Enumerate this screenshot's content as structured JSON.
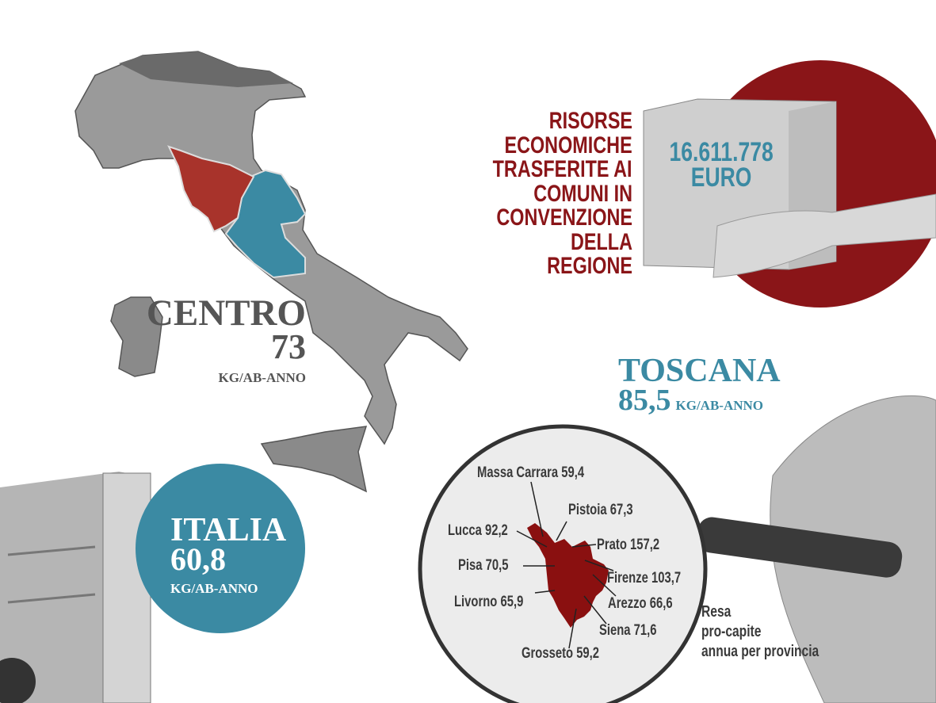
{
  "colors": {
    "red": "#8a1518",
    "blue": "#3b8aa3",
    "gray_text": "#555555"
  },
  "centro": {
    "title": "CENTRO",
    "value": "73",
    "unit": "KG/AB-ANNO"
  },
  "italia": {
    "title": "ITALIA",
    "value": "60,8",
    "unit": "KG/AB-ANNO"
  },
  "risorse": {
    "lines": [
      "RISORSE",
      "ECONOMICHE",
      "TRASFERITE AI",
      "COMUNI IN",
      "CONVENZIONE",
      "DELLA REGIONE"
    ],
    "amount": "16.611.778",
    "currency": "EURO"
  },
  "toscana": {
    "title": "TOSCANA",
    "value": "85,5",
    "unit": "KG/AB-ANNO"
  },
  "province": [
    {
      "name": "Massa Carrara",
      "value": "59,4"
    },
    {
      "name": "Pistoia",
      "value": "67,3"
    },
    {
      "name": "Lucca",
      "value": "92,2"
    },
    {
      "name": "Prato",
      "value": "157,2"
    },
    {
      "name": "Pisa",
      "value": "70,5"
    },
    {
      "name": "Firenze",
      "value": "103,7"
    },
    {
      "name": "Livorno",
      "value": "65,9"
    },
    {
      "name": "Arezzo",
      "value": "66,6"
    },
    {
      "name": "Siena",
      "value": "71,6"
    },
    {
      "name": "Grosseto",
      "value": "59,2"
    }
  ],
  "resa": {
    "lines": [
      "Resa",
      "pro-capite",
      "annua per provincia"
    ]
  }
}
